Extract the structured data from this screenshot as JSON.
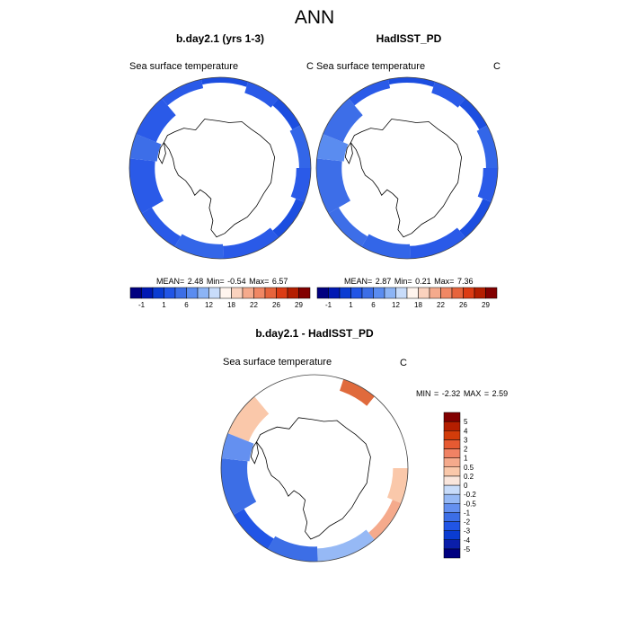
{
  "figure": {
    "title": "ANN"
  },
  "panels": [
    {
      "title": "b.day2.1 (yrs 1-3)",
      "left_label": "Sea surface temperature",
      "right_label": "C",
      "stats": {
        "mean_label": "MEAN=",
        "mean": "2.48",
        "min_label": "Min=",
        "min": "-0.54",
        "max_label": "Max=",
        "max": "6.57"
      }
    },
    {
      "title": "HadISST_PD",
      "left_label": "Sea surface temperature",
      "right_label": "C",
      "stats": {
        "mean_label": "MEAN=",
        "mean": "2.87",
        "min_label": "Min=",
        "min": "0.21",
        "max_label": "Max=",
        "max": "7.36"
      }
    },
    {
      "title": "b.day2.1 - HadISST_PD",
      "left_label": "Sea surface temperature",
      "right_label": "C",
      "stats": {
        "min_label": "MIN =",
        "min": "-2.32",
        "max_label": "MAX =",
        "max": "2.59"
      }
    }
  ],
  "chart_data": [
    {
      "type": "heatmap",
      "title": "b.day2.1 (yrs 1-3)",
      "projection": "south-polar stereographic",
      "variable": "Sea surface temperature",
      "units": "C",
      "ring_value_range": [
        -0.5,
        6.5
      ],
      "colorbar": {
        "orientation": "horizontal",
        "levels": [
          -1,
          1,
          6,
          12,
          18,
          22,
          26,
          29
        ],
        "colors": [
          "#000080",
          "#0019b4",
          "#0a3cd2",
          "#2155e6",
          "#3c6ee6",
          "#5a8cf0",
          "#8cb4f5",
          "#c8dcfa",
          "#fff5ee",
          "#fad2be",
          "#f5aa8c",
          "#f08764",
          "#e6643c",
          "#dc3c14",
          "#b41e00",
          "#820000"
        ]
      }
    },
    {
      "type": "heatmap",
      "title": "HadISST_PD",
      "projection": "south-polar stereographic",
      "variable": "Sea surface temperature",
      "units": "C",
      "ring_value_range": [
        0,
        7.5
      ],
      "colorbar": {
        "orientation": "horizontal",
        "levels": [
          -1,
          1,
          6,
          12,
          18,
          22,
          26,
          29
        ],
        "colors": [
          "#000080",
          "#0019b4",
          "#0a3cd2",
          "#2155e6",
          "#3c6ee6",
          "#5a8cf0",
          "#8cb4f5",
          "#c8dcfa",
          "#fff5ee",
          "#fad2be",
          "#f5aa8c",
          "#f08764",
          "#e6643c",
          "#dc3c14",
          "#b41e00",
          "#820000"
        ]
      }
    },
    {
      "type": "heatmap",
      "title": "b.day2.1 - HadISST_PD",
      "projection": "south-polar stereographic",
      "variable": "Sea surface temperature",
      "units": "C",
      "colorbar": {
        "orientation": "vertical",
        "levels": [
          -5,
          -4,
          -3,
          -2,
          -1,
          -0.5,
          -0.2,
          0,
          0.2,
          0.5,
          1,
          2,
          3,
          4,
          5
        ],
        "level_labels": [
          "-5",
          "-4",
          "-3",
          "-2",
          "-1",
          "-0.5",
          "-0.2",
          "0",
          "0.2",
          "0.5",
          "1",
          "2",
          "3",
          "4",
          "5"
        ],
        "colors": [
          "#000080",
          "#0a1eaa",
          "#0a3cd2",
          "#2155e6",
          "#3c6ee6",
          "#6490f0",
          "#96b9f5",
          "#c8dcfa",
          "#fae6dc",
          "#fac8aa",
          "#f5aa8c",
          "#f08264",
          "#e65a32",
          "#d23c0a",
          "#b41e00",
          "#820000"
        ]
      }
    }
  ]
}
